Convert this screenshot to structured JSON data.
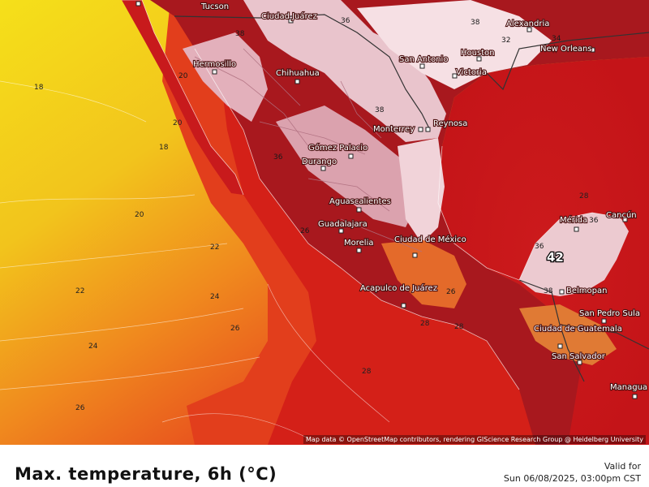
{
  "title": "Max. temperature, 6h (°C)",
  "valid_for_label": "Valid for",
  "valid_date": "Sun 06/08/2025, 03:00pm CST",
  "attribution": "Map data © OpenStreetMap contributors, rendering GIScience Research Group @ Heidelberg University",
  "colors": {
    "cold_yellow": "#f2d21a",
    "orange": "#f08a1e",
    "red_orange": "#e8421e",
    "red": "#d42018",
    "deep_red": "#c5141a",
    "hot_land": "#a8181e",
    "very_hot_land": "#7a1018",
    "extreme_pink": "#f2d6dc",
    "extreme_white": "#fbeef0"
  },
  "cities": [
    {
      "name": "Tucson"
    },
    {
      "name": "Ciudad Juárez"
    },
    {
      "name": "Hermosillo"
    },
    {
      "name": "Chihuahua"
    },
    {
      "name": "San Antonio"
    },
    {
      "name": "Houston"
    },
    {
      "name": "Victoria"
    },
    {
      "name": "New Orleans"
    },
    {
      "name": "Alexandria"
    },
    {
      "name": "Monterrey"
    },
    {
      "name": "Reynosa"
    },
    {
      "name": "Gómez Palacio"
    },
    {
      "name": "Durango"
    },
    {
      "name": "Aguascalientes"
    },
    {
      "name": "Guadalajara"
    },
    {
      "name": "Morelia"
    },
    {
      "name": "Ciudad de México"
    },
    {
      "name": "Acapulco de Juárez"
    },
    {
      "name": "Mérida"
    },
    {
      "name": "Cancún"
    },
    {
      "name": "Belmopan"
    },
    {
      "name": "San Pedro Sula"
    },
    {
      "name": "Ciudad de Guatemala"
    },
    {
      "name": "San Salvador"
    },
    {
      "name": "Managua"
    }
  ],
  "isotherm_labels": [
    {
      "value": "18"
    },
    {
      "value": "18"
    },
    {
      "value": "20"
    },
    {
      "value": "20"
    },
    {
      "value": "22"
    },
    {
      "value": "22"
    },
    {
      "value": "24"
    },
    {
      "value": "24"
    },
    {
      "value": "26"
    },
    {
      "value": "26"
    },
    {
      "value": "28"
    },
    {
      "value": "28"
    },
    {
      "value": "28"
    },
    {
      "value": "28"
    },
    {
      "value": "36"
    },
    {
      "value": "38"
    },
    {
      "value": "38"
    },
    {
      "value": "36"
    },
    {
      "value": "36"
    },
    {
      "value": "38"
    },
    {
      "value": "34"
    },
    {
      "value": "32"
    },
    {
      "value": "26"
    },
    {
      "value": "36"
    },
    {
      "value": "38"
    },
    {
      "value": "26"
    },
    {
      "value": "20"
    }
  ],
  "hot_spot_value": "42"
}
